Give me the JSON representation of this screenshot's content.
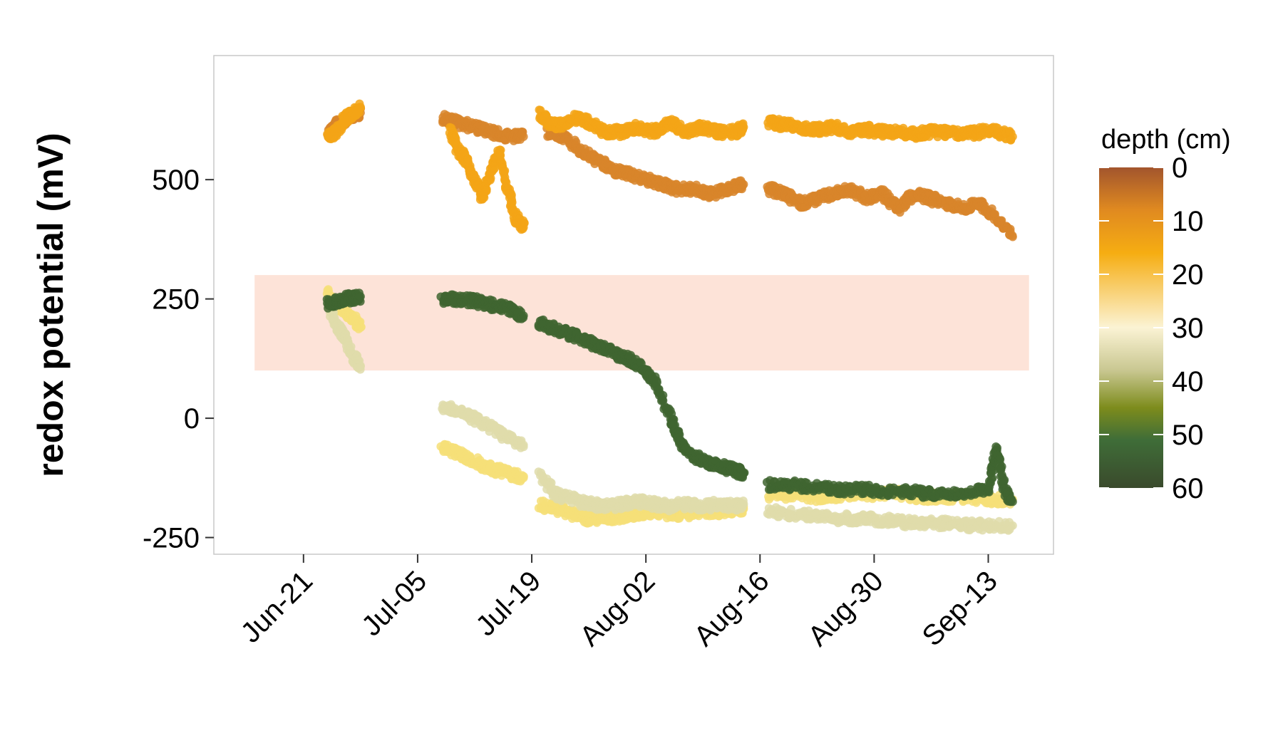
{
  "chart_data": {
    "type": "scatter",
    "title": "",
    "xlabel": "",
    "ylabel": "redox potential (mV)",
    "x_type": "date",
    "x_ticks": [
      "Jun-21",
      "Jul-05",
      "Jul-19",
      "Aug-02",
      "Aug-16",
      "Aug-30",
      "Sep-13"
    ],
    "x_tick_dates": [
      "06-21",
      "07-05",
      "07-19",
      "08-02",
      "08-16",
      "08-30",
      "09-13"
    ],
    "xlim": [
      "06-10",
      "09-21"
    ],
    "y_ticks": [
      -250,
      0,
      250,
      500
    ],
    "ylim": [
      -285,
      760
    ],
    "grid": false,
    "highlight_band": {
      "y_range": [
        100,
        300
      ],
      "x_range": [
        "06-15",
        "09-18"
      ],
      "color": "#fde3d8"
    },
    "legend": {
      "title": "depth (cm)",
      "position": "right",
      "type": "continuous-colorbar",
      "reversed": true,
      "ticks": [
        0,
        10,
        20,
        30,
        40,
        50,
        60
      ],
      "stops": [
        {
          "value": 0,
          "color": "#a2552d"
        },
        {
          "value": 8,
          "color": "#e08a20"
        },
        {
          "value": 16,
          "color": "#f6ad12"
        },
        {
          "value": 30,
          "color": "#fbf3d4"
        },
        {
          "value": 38,
          "color": "#c9c791"
        },
        {
          "value": 45,
          "color": "#7d8c1c"
        },
        {
          "value": 51,
          "color": "#3f6d38"
        },
        {
          "value": 60,
          "color": "#3a4a2c"
        }
      ]
    },
    "series": [
      {
        "depth": 5,
        "color": "#d8852a",
        "segments": [
          {
            "x": [
              "06-24",
              "06-25",
              "06-26",
              "06-27",
              "06-28"
            ],
            "y": [
              600,
              615,
              625,
              635,
              640
            ]
          },
          {
            "x": [
              "07-08",
              "07-10",
              "07-12",
              "07-14",
              "07-16",
              "07-18"
            ],
            "y": [
              630,
              620,
              610,
              600,
              590,
              590
            ]
          },
          {
            "x": [
              "07-21",
              "07-23",
              "07-25",
              "07-27",
              "07-29",
              "07-31",
              "08-02",
              "08-04",
              "08-06",
              "08-08",
              "08-10",
              "08-12",
              "08-14"
            ],
            "y": [
              600,
              590,
              560,
              540,
              520,
              510,
              500,
              490,
              480,
              480,
              470,
              480,
              490
            ]
          },
          {
            "x": [
              "08-17",
              "08-19",
              "08-21",
              "08-23",
              "08-25",
              "08-27",
              "08-29",
              "08-31",
              "09-02",
              "09-04",
              "09-06",
              "09-08",
              "09-10",
              "09-12",
              "09-14",
              "09-16"
            ],
            "y": [
              480,
              470,
              450,
              460,
              470,
              480,
              460,
              470,
              440,
              470,
              460,
              450,
              440,
              450,
              420,
              380
            ]
          }
        ]
      },
      {
        "depth": 15,
        "color": "#f3a416",
        "segments": [
          {
            "x": [
              "06-24",
              "06-25",
              "06-26",
              "06-27",
              "06-28"
            ],
            "y": [
              590,
              600,
              625,
              640,
              650
            ]
          },
          {
            "x": [
              "07-09",
              "07-10",
              "07-11",
              "07-12",
              "07-13",
              "07-14",
              "07-15",
              "07-16",
              "07-17",
              "07-18"
            ],
            "y": [
              600,
              560,
              540,
              500,
              460,
              520,
              560,
              480,
              420,
              400
            ]
          },
          {
            "x": [
              "07-20",
              "07-21",
              "07-22",
              "07-24",
              "07-26",
              "07-28",
              "07-30",
              "08-01",
              "08-03",
              "08-05",
              "08-07",
              "08-09",
              "08-11",
              "08-13",
              "08-14"
            ],
            "y": [
              640,
              620,
              610,
              630,
              620,
              600,
              600,
              610,
              600,
              620,
              600,
              610,
              600,
              600,
              610
            ]
          },
          {
            "x": [
              "08-17",
              "08-19",
              "08-21",
              "08-23",
              "08-25",
              "08-27",
              "08-29",
              "08-31",
              "09-02",
              "09-04",
              "09-06",
              "09-08",
              "09-10",
              "09-12",
              "09-14",
              "09-16"
            ],
            "y": [
              620,
              615,
              610,
              605,
              610,
              600,
              605,
              600,
              600,
              595,
              600,
              600,
              595,
              600,
              600,
              590
            ]
          }
        ]
      },
      {
        "depth": 25,
        "color": "#f6df78",
        "segments": [
          {
            "x": [
              "06-24",
              "06-25",
              "06-26",
              "06-27",
              "06-28"
            ],
            "y": [
              260,
              240,
              225,
              210,
              190
            ]
          },
          {
            "x": [
              "07-08",
              "07-10",
              "07-12",
              "07-14",
              "07-16",
              "07-18"
            ],
            "y": [
              -60,
              -75,
              -90,
              -105,
              -115,
              -125
            ]
          },
          {
            "x": [
              "07-20",
              "07-22",
              "07-24",
              "07-26",
              "07-28",
              "07-30",
              "08-01",
              "08-03",
              "08-05",
              "08-07",
              "08-09",
              "08-11",
              "08-13",
              "08-14"
            ],
            "y": [
              -180,
              -190,
              -200,
              -210,
              -210,
              -205,
              -200,
              -195,
              -200,
              -200,
              -195,
              -195,
              -190,
              -190
            ]
          },
          {
            "x": [
              "08-17",
              "08-20",
              "08-23",
              "08-26",
              "08-29",
              "09-01",
              "09-04",
              "09-07",
              "09-10",
              "09-13",
              "09-16"
            ],
            "y": [
              -160,
              -160,
              -165,
              -160,
              -160,
              -155,
              -165,
              -165,
              -165,
              -170,
              -170
            ]
          }
        ]
      },
      {
        "depth": 35,
        "color": "#dfdcaa",
        "segments": [
          {
            "x": [
              "06-24",
              "06-25",
              "06-26",
              "06-27",
              "06-28"
            ],
            "y": [
              240,
              200,
              170,
              130,
              110
            ]
          },
          {
            "x": [
              "07-08",
              "07-10",
              "07-12",
              "07-14",
              "07-16",
              "07-18"
            ],
            "y": [
              25,
              15,
              0,
              -20,
              -40,
              -60
            ]
          },
          {
            "x": [
              "07-20",
              "07-22",
              "07-24",
              "07-26",
              "07-28",
              "07-30",
              "08-01",
              "08-03",
              "08-05",
              "08-07",
              "08-09",
              "08-11",
              "08-13",
              "08-14"
            ],
            "y": [
              -120,
              -160,
              -170,
              -180,
              -185,
              -180,
              -175,
              -180,
              -185,
              -180,
              -185,
              -180,
              -185,
              -180
            ]
          },
          {
            "x": [
              "08-17",
              "08-20",
              "08-23",
              "08-26",
              "08-29",
              "09-01",
              "09-04",
              "09-07",
              "09-10",
              "09-13",
              "09-16"
            ],
            "y": [
              -195,
              -200,
              -205,
              -210,
              -210,
              -215,
              -220,
              -220,
              -225,
              -225,
              -225
            ]
          }
        ]
      },
      {
        "depth": 55,
        "color": "#3f6530",
        "segments": [
          {
            "x": [
              "06-24",
              "06-25",
              "06-26",
              "06-27",
              "06-28"
            ],
            "y": [
              240,
              245,
              250,
              252,
              255
            ]
          },
          {
            "x": [
              "07-08",
              "07-10",
              "07-12",
              "07-14",
              "07-16",
              "07-18"
            ],
            "y": [
              248,
              250,
              245,
              238,
              230,
              215
            ]
          },
          {
            "x": [
              "07-20",
              "07-22",
              "07-24",
              "07-26",
              "07-28",
              "07-30",
              "08-01",
              "08-03",
              "08-05",
              "08-06",
              "08-07",
              "08-09",
              "08-11",
              "08-13",
              "08-14"
            ],
            "y": [
              200,
              185,
              175,
              160,
              145,
              130,
              115,
              80,
              0,
              -40,
              -70,
              -90,
              -100,
              -110,
              -115
            ]
          },
          {
            "x": [
              "08-17",
              "08-20",
              "08-23",
              "08-26",
              "08-29",
              "09-01",
              "09-04",
              "09-07",
              "09-10",
              "09-13",
              "09-14",
              "09-15",
              "09-16"
            ],
            "y": [
              -140,
              -140,
              -145,
              -150,
              -150,
              -155,
              -155,
              -160,
              -155,
              -150,
              -60,
              -150,
              -175
            ]
          }
        ]
      }
    ]
  }
}
